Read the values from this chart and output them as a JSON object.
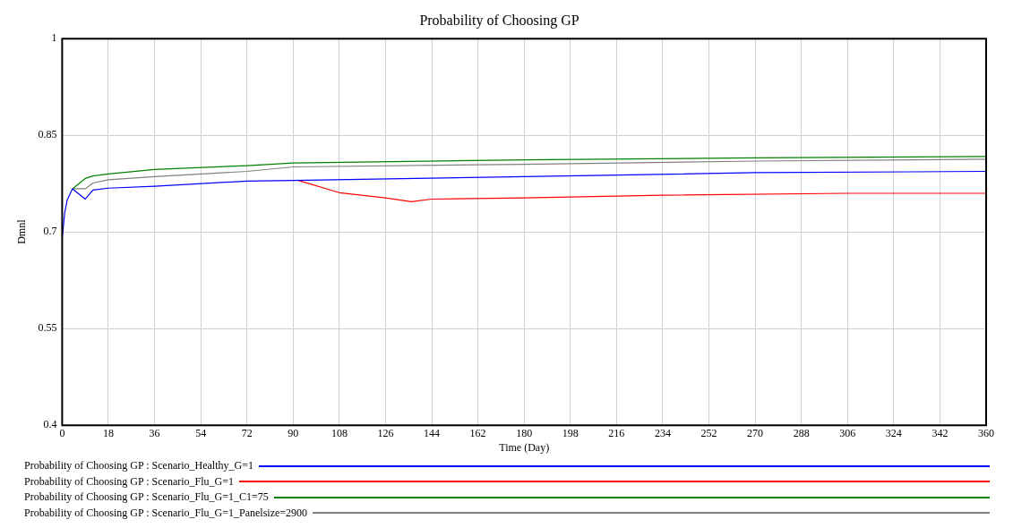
{
  "chart_data": {
    "type": "line",
    "title": "Probability of Choosing GP",
    "xlabel": "Time (Day)",
    "ylabel": "Dmnl",
    "x": [
      0,
      1,
      2,
      4,
      9,
      12,
      18,
      36,
      72,
      90,
      180,
      270,
      360
    ],
    "series": [
      {
        "name": "Probability of Choosing GP : Scenario_Healthy_G=1",
        "color": "#0000ff",
        "values": [
          0.69,
          0.73,
          0.75,
          0.767,
          0.751,
          0.765,
          0.768,
          0.771,
          0.779,
          0.78,
          0.786,
          0.792,
          0.794
        ]
      },
      {
        "name": "Probability of Choosing GP : Scenario_Flu_G=1",
        "color": "#ff0000",
        "x": [
          92,
          108,
          126,
          136,
          144,
          180,
          234,
          306,
          360
        ],
        "values": [
          0.78,
          0.761,
          0.753,
          0.747,
          0.751,
          0.753,
          0.757,
          0.76,
          0.76
        ]
      },
      {
        "name": "Probability of Choosing GP : Scenario_Flu_G=1_C1=75",
        "color": "#008000",
        "values": [
          null,
          null,
          null,
          0.767,
          0.783,
          0.787,
          0.79,
          0.797,
          0.803,
          0.807,
          0.812,
          0.815,
          0.817
        ]
      },
      {
        "name": "Probability of Choosing GP : Scenario_Flu_G=1_Panelsize=2900",
        "color": "#808080",
        "values": [
          null,
          null,
          null,
          0.767,
          0.767,
          0.776,
          0.781,
          0.786,
          0.794,
          0.801,
          0.805,
          0.81,
          0.813
        ]
      }
    ],
    "xlim": [
      0,
      360
    ],
    "xticks": [
      0,
      18,
      36,
      54,
      72,
      90,
      108,
      126,
      144,
      162,
      180,
      198,
      216,
      234,
      252,
      270,
      288,
      306,
      324,
      342,
      360
    ],
    "ylim": [
      0.4,
      1
    ],
    "yticks": [
      0.4,
      0.55,
      0.7,
      0.85,
      1
    ],
    "grid": true,
    "legend": "bottom",
    "marker": "none",
    "line_style": "solid"
  }
}
